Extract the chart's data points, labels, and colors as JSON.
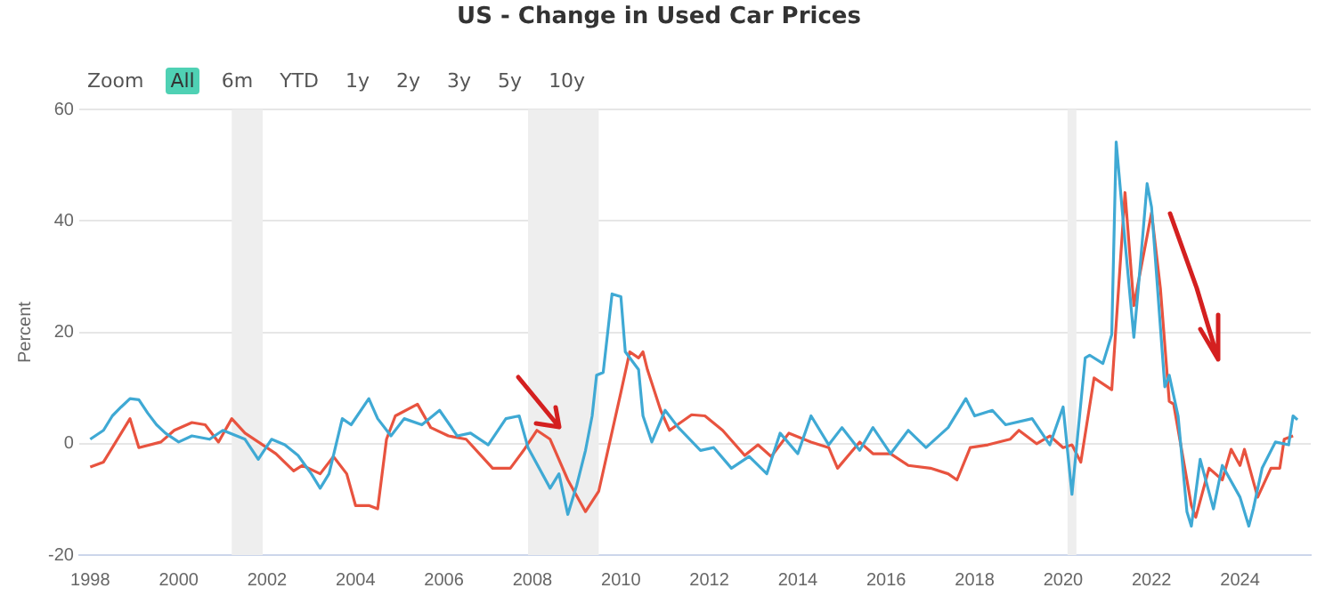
{
  "chart_data": {
    "type": "line",
    "title": "US - Change in Used Car Prices",
    "ylabel": "Percent",
    "annotations": [
      "Zoom",
      "All",
      "6m",
      "YTD",
      "1y",
      "2y",
      "3y",
      "5y",
      "10y"
    ],
    "xlim": [
      1997.75,
      2025.6
    ],
    "xticks": [
      1998,
      2000,
      2002,
      2004,
      2006,
      2008,
      2010,
      2012,
      2014,
      2016,
      2018,
      2020,
      2022,
      2024
    ],
    "ylim": [
      -20,
      60
    ],
    "yticks": [
      -20,
      0,
      20,
      40,
      60
    ],
    "grid": "y",
    "legend": false,
    "marker": "none",
    "line_style": "solid",
    "bands": [
      {
        "axis": "x",
        "from": 2001.2,
        "to": 2001.9,
        "color": "#eeeeee"
      },
      {
        "axis": "x",
        "from": 2007.9,
        "to": 2009.5,
        "color": "#eeeeee"
      },
      {
        "axis": "x",
        "from": 2020.1,
        "to": 2020.3,
        "color": "#eeeeee"
      }
    ],
    "series": [
      {
        "color": "#3fa9d4",
        "x": [
          1998.0,
          1998.3,
          1998.5,
          1998.7,
          1998.9,
          1999.1,
          1999.3,
          1999.5,
          1999.7,
          2000.0,
          2000.3,
          2000.7,
          2001.0,
          2001.5,
          2001.8,
          2002.1,
          2002.4,
          2002.7,
          2003.0,
          2003.2,
          2003.4,
          2003.7,
          2003.9,
          2004.3,
          2004.5,
          2004.8,
          2005.1,
          2005.5,
          2005.9,
          2006.3,
          2006.6,
          2007.0,
          2007.4,
          2007.7,
          2007.9,
          2008.4,
          2008.6,
          2008.8,
          2009.0,
          2009.2,
          2009.35,
          2009.45,
          2009.6,
          2009.8,
          2010.0,
          2010.1,
          2010.4,
          2010.5,
          2010.7,
          2011.0,
          2011.3,
          2011.8,
          2012.1,
          2012.5,
          2012.9,
          2013.3,
          2013.6,
          2014.0,
          2014.3,
          2014.7,
          2015.0,
          2015.4,
          2015.7,
          2016.1,
          2016.5,
          2016.9,
          2017.4,
          2017.8,
          2018.0,
          2018.4,
          2018.7,
          2019.3,
          2019.7,
          2020.0,
          2020.2,
          2020.5,
          2020.6,
          2020.9,
          2021.1,
          2021.2,
          2021.4,
          2021.6,
          2021.7,
          2021.9,
          2022.0,
          2022.3,
          2022.4,
          2022.6,
          2022.8,
          2022.9,
          2023.1,
          2023.4,
          2023.6,
          2024.0,
          2024.2,
          2024.3,
          2024.5,
          2024.8,
          2025.1,
          2025.2,
          2025.3
        ],
        "values": [
          0.8,
          2.4,
          5,
          6.6,
          8.1,
          7.9,
          5.5,
          3.4,
          1.9,
          0.3,
          1.4,
          0.8,
          2.4,
          0.8,
          -2.8,
          0.8,
          -0.2,
          -2.1,
          -5.4,
          -8,
          -5.4,
          4.5,
          3.4,
          8.1,
          4.5,
          1.4,
          4.5,
          3.4,
          6,
          1.4,
          1.9,
          -0.2,
          4.5,
          5,
          -0.7,
          -8,
          -5.4,
          -12.7,
          -7.5,
          -1.2,
          5,
          12.3,
          12.8,
          26.9,
          26.4,
          16.5,
          13.3,
          5,
          0.3,
          6,
          2.9,
          -1.2,
          -0.7,
          -4.4,
          -2.3,
          -5.4,
          1.9,
          -1.8,
          5,
          -0.2,
          2.9,
          -1.2,
          2.9,
          -1.8,
          2.4,
          -0.7,
          2.9,
          8.1,
          5,
          6,
          3.4,
          4.5,
          -0.2,
          6.6,
          -9.1,
          15.4,
          15.9,
          14.4,
          19.6,
          54.2,
          36.3,
          19.1,
          27.9,
          46.7,
          42.5,
          10.2,
          12.3,
          5,
          -12.2,
          -14.8,
          -2.8,
          -11.7,
          -3.9,
          -9.6,
          -14.8,
          -11.7,
          -4.4,
          0.3,
          -0.2,
          5,
          4.3
        ]
      },
      {
        "color": "#e8533f",
        "x": [
          1998.0,
          1998.3,
          1998.9,
          1999.1,
          1999.6,
          1999.9,
          2000.3,
          2000.6,
          2000.9,
          2001.2,
          2001.5,
          2002.2,
          2002.6,
          2002.8,
          2003.2,
          2003.5,
          2003.8,
          2004.0,
          2004.3,
          2004.5,
          2004.7,
          2004.9,
          2005.4,
          2005.7,
          2006.1,
          2006.5,
          2007.1,
          2007.5,
          2007.8,
          2008.1,
          2008.4,
          2008.8,
          2009.2,
          2009.5,
          2010.0,
          2010.2,
          2010.4,
          2010.5,
          2010.6,
          2010.9,
          2011.1,
          2011.6,
          2011.9,
          2012.3,
          2012.8,
          2013.1,
          2013.4,
          2013.8,
          2014.3,
          2014.7,
          2014.9,
          2015.4,
          2015.7,
          2016.1,
          2016.5,
          2017.0,
          2017.4,
          2017.6,
          2017.9,
          2018.3,
          2018.8,
          2019.0,
          2019.4,
          2019.7,
          2020.0,
          2020.2,
          2020.4,
          2020.7,
          2021.1,
          2021.4,
          2021.6,
          2022.0,
          2022.2,
          2022.4,
          2022.5,
          2022.9,
          2023.0,
          2023.3,
          2023.6,
          2023.8,
          2024.0,
          2024.1,
          2024.4,
          2024.7,
          2024.9,
          2025.0,
          2025.2
        ],
        "values": [
          -4.2,
          -3.3,
          4.5,
          -0.7,
          0.3,
          2.4,
          3.8,
          3.4,
          0.3,
          4.5,
          1.9,
          -1.8,
          -4.9,
          -3.9,
          -5.4,
          -2.3,
          -5.4,
          -11.1,
          -11.1,
          -11.7,
          0.8,
          5,
          7.1,
          2.9,
          1.4,
          0.8,
          -4.4,
          -4.4,
          -1.2,
          2.4,
          0.8,
          -6.5,
          -12.2,
          -8.5,
          9.2,
          16.5,
          15.4,
          16.5,
          13.3,
          6,
          2.4,
          5.2,
          5,
          2.4,
          -2.1,
          -0.2,
          -2.3,
          1.9,
          0.3,
          -0.7,
          -4.4,
          0.3,
          -1.8,
          -1.8,
          -3.9,
          -4.4,
          -5.4,
          -6.5,
          -0.7,
          -0.2,
          0.8,
          2.4,
          0,
          1.4,
          -0.7,
          -0.2,
          -3.3,
          11.8,
          9.7,
          45.1,
          24.8,
          41.5,
          27.9,
          7.6,
          7.1,
          -11.1,
          -13.2,
          -4.4,
          -6.5,
          -1,
          -3.9,
          -1,
          -9.6,
          -4.4,
          -4.4,
          0.8,
          1.4
        ]
      }
    ]
  }
}
